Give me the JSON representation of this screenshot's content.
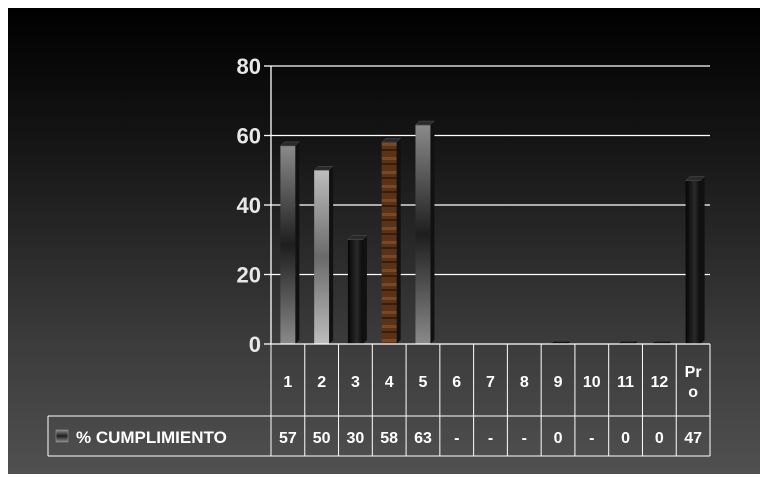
{
  "chart_data": {
    "type": "bar",
    "categories": [
      "1",
      "2",
      "3",
      "4",
      "5",
      "6",
      "7",
      "8",
      "9",
      "10",
      "11",
      "12",
      "Pro"
    ],
    "series": [
      {
        "name": "% CUMPLIMIENTO",
        "values": [
          57,
          50,
          30,
          58,
          63,
          null,
          null,
          null,
          0,
          null,
          0,
          0,
          47
        ],
        "labels": [
          "57",
          "50",
          "30",
          "58",
          "63",
          "-",
          "-",
          "-",
          "0",
          "-",
          "0",
          "0",
          "47"
        ]
      }
    ],
    "yticks": [
      "0",
      "20",
      "40",
      "60",
      "80"
    ],
    "ylim": [
      0,
      80
    ],
    "grid": true,
    "legend": "data-table-left",
    "title": "",
    "xlabel": "",
    "ylabel": ""
  },
  "colors": {
    "background_top": "#000000",
    "background_bottom": "#505050",
    "grid": "#ffffff"
  },
  "bar_styles": [
    "grey",
    "lightgrey",
    "black",
    "brown",
    "grey",
    "black",
    "black",
    "black",
    "black",
    "black",
    "black",
    "black",
    "black"
  ]
}
